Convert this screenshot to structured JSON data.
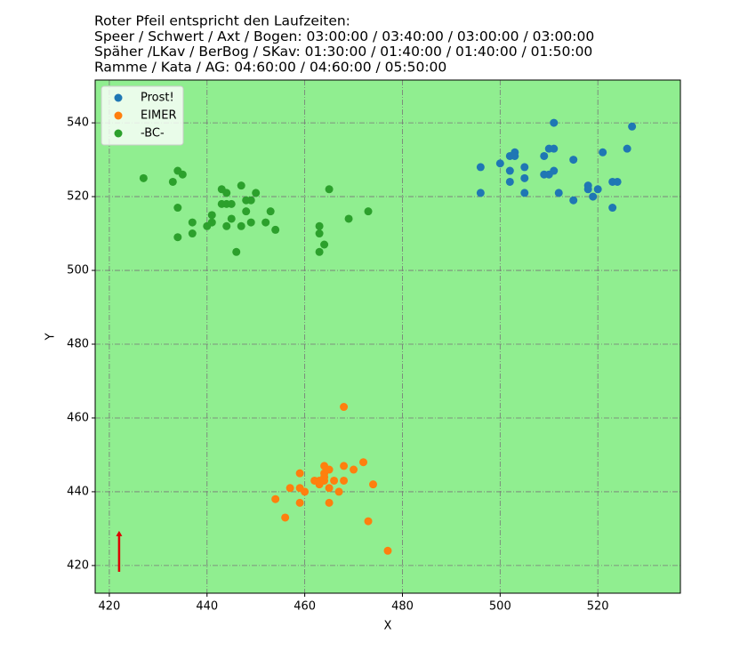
{
  "chart_data": {
    "type": "scatter",
    "title": [
      "Roter Pfeil entspricht den Laufzeiten:",
      "Speer / Schwert / Axt / Bogen: 03:00:00 / 03:40:00 / 03:00:00 / 03:00:00",
      "Späher /LKav / BerBog / SKav: 01:30:00 / 01:40:00 / 01:40:00 / 01:50:00",
      "Ramme / Kata / AG: 04:60:00 / 04:60:00 / 05:50:00"
    ],
    "x_label": "X",
    "y_label": "Y",
    "xlim": [
      417.1,
      536.9
    ],
    "ylim": [
      412.5,
      551.6
    ],
    "xticks": [
      420,
      440,
      460,
      480,
      500,
      520
    ],
    "yticks": [
      420,
      440,
      460,
      480,
      500,
      520,
      540
    ],
    "grid": true,
    "background": "#90ee90",
    "legend": "upper-left",
    "series": [
      {
        "name": "Prost!",
        "color": "#1f77b4",
        "x": [
          496,
          496,
          500,
          502,
          502,
          502,
          503,
          503,
          505,
          505,
          505,
          509,
          509,
          510,
          510,
          511,
          511,
          511,
          512,
          515,
          515,
          518,
          518,
          519,
          520,
          521,
          523,
          523,
          524,
          526,
          527
        ],
        "values": [
          528,
          521,
          529,
          531,
          527,
          524,
          532,
          531,
          528,
          525,
          521,
          531,
          526,
          533,
          526,
          540,
          533,
          527,
          521,
          530,
          519,
          523,
          522,
          520,
          522,
          532,
          524,
          517,
          524,
          533,
          539
        ]
      },
      {
        "name": "EIMER",
        "color": "#ff7f0e",
        "x": [
          468,
          454,
          456,
          457,
          459,
          459,
          459,
          460,
          462,
          463,
          464,
          464,
          464,
          465,
          465,
          465,
          466,
          467,
          468,
          468,
          470,
          472,
          473,
          474,
          477,
          464,
          463
        ],
        "values": [
          463,
          438,
          433,
          441,
          445,
          441,
          437,
          440,
          443,
          442,
          447,
          445,
          443,
          446,
          441,
          437,
          443,
          440,
          447,
          443,
          446,
          448,
          432,
          442,
          424,
          444,
          443
        ]
      },
      {
        "name": "-BC-",
        "color": "#2ca02c",
        "x": [
          427,
          433,
          434,
          435,
          434,
          434,
          437,
          437,
          440,
          441,
          441,
          443,
          443,
          444,
          444,
          445,
          444,
          445,
          446,
          447,
          447,
          448,
          448,
          449,
          449,
          450,
          452,
          453,
          454,
          463,
          463,
          463,
          464,
          465,
          469,
          473
        ],
        "values": [
          525,
          524,
          527,
          526,
          517,
          509,
          513,
          510,
          512,
          515,
          513,
          522,
          518,
          521,
          518,
          518,
          512,
          514,
          505,
          523,
          512,
          519,
          516,
          519,
          513,
          521,
          513,
          516,
          511,
          512,
          510,
          505,
          507,
          522,
          514,
          516
        ]
      }
    ],
    "arrow": {
      "x": 422,
      "y": 418.3,
      "dx": 0,
      "dy": 11.1,
      "color": "#dd0000"
    }
  }
}
